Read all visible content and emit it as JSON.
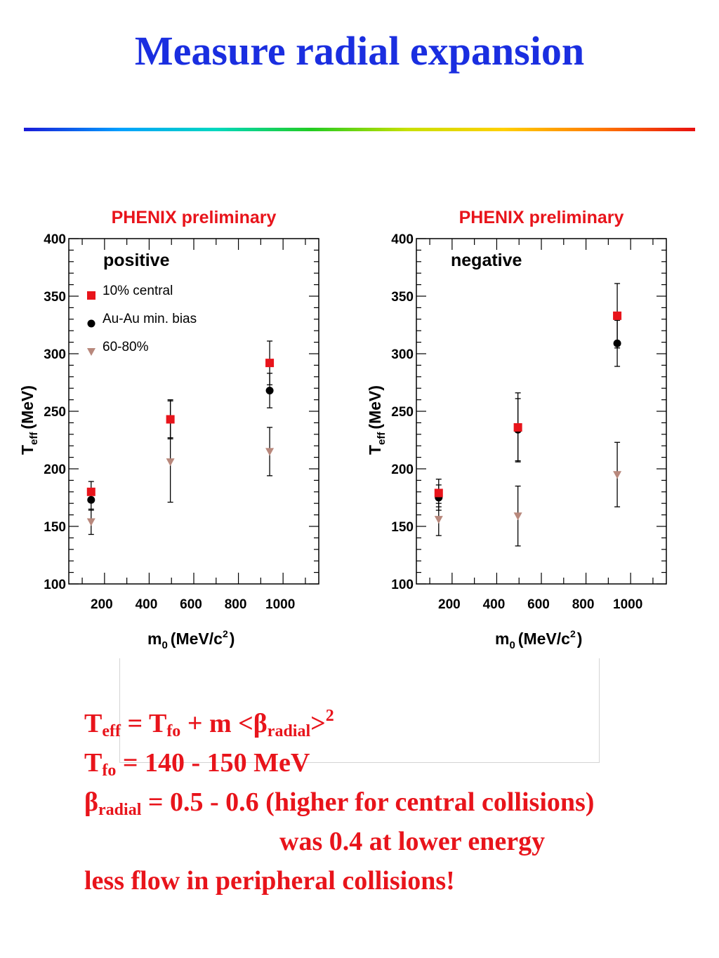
{
  "slide": {
    "title": "Measure radial expansion"
  },
  "chart_data": [
    {
      "type": "scatter",
      "title": "PHENIX preliminary",
      "panel_label": "positive",
      "ylabel_main": "T",
      "ylabel_sub": "eff",
      "ylabel_unit": "(MeV)",
      "xlabel_main": "m",
      "xlabel_sub": "0",
      "xlabel_unit": "(MeV/c",
      "xlabel_sup": "2",
      "xlabel_close": ")",
      "xlim": [
        40,
        1160
      ],
      "ylim": [
        100,
        400
      ],
      "xticks": [
        200,
        400,
        600,
        800,
        1000
      ],
      "yticks": [
        100,
        150,
        200,
        250,
        300,
        350,
        400
      ],
      "grid": false,
      "legend_position": "top-left",
      "series": [
        {
          "name": "10% central",
          "marker": "square",
          "color": "#e8141b",
          "points": [
            {
              "x": 140,
              "y": 180,
              "err": 9
            },
            {
              "x": 495,
              "y": 243,
              "err": 16
            },
            {
              "x": 940,
              "y": 292,
              "err": 19
            }
          ]
        },
        {
          "name": "Au-Au min. bias",
          "marker": "circle",
          "color": "#000000",
          "points": [
            {
              "x": 140,
              "y": 173,
              "err": 9
            },
            {
              "x": 495,
              "y": 243,
              "err": 17
            },
            {
              "x": 940,
              "y": 268,
              "err": 15
            }
          ]
        },
        {
          "name": "60-80%",
          "marker": "triangle",
          "color": "#b8887c",
          "points": [
            {
              "x": 140,
              "y": 154,
              "err": 11
            },
            {
              "x": 495,
              "y": 206,
              "err": 35
            },
            {
              "x": 940,
              "y": 215,
              "err": 21
            }
          ]
        }
      ]
    },
    {
      "type": "scatter",
      "title": "PHENIX preliminary",
      "panel_label": "negative",
      "ylabel_main": "T",
      "ylabel_sub": "eff",
      "ylabel_unit": "(MeV)",
      "xlabel_main": "m",
      "xlabel_sub": "0",
      "xlabel_unit": "(MeV/c",
      "xlabel_sup": "2",
      "xlabel_close": ")",
      "xlim": [
        40,
        1160
      ],
      "ylim": [
        100,
        400
      ],
      "xticks": [
        200,
        400,
        600,
        800,
        1000
      ],
      "yticks": [
        100,
        150,
        200,
        250,
        300,
        350,
        400
      ],
      "grid": false,
      "series": [
        {
          "name": "",
          "marker": "square",
          "color": "#e8141b",
          "points": [
            {
              "x": 140,
              "y": 179,
              "err": 12
            },
            {
              "x": 495,
              "y": 236,
              "err": 30
            },
            {
              "x": 940,
              "y": 333,
              "err": 28
            }
          ]
        },
        {
          "name": "",
          "marker": "circle",
          "color": "#000000",
          "points": [
            {
              "x": 140,
              "y": 175,
              "err": 11
            },
            {
              "x": 495,
              "y": 234,
              "err": 27
            },
            {
              "x": 940,
              "y": 309,
              "err": 20
            }
          ]
        },
        {
          "name": "",
          "marker": "triangle",
          "color": "#b8887c",
          "points": [
            {
              "x": 140,
              "y": 156,
              "err": 14
            },
            {
              "x": 495,
              "y": 159,
              "err": 26
            },
            {
              "x": 940,
              "y": 195,
              "err": 28
            }
          ]
        }
      ]
    }
  ],
  "notes": {
    "l1_T": "T",
    "l1_eff": "eff",
    "l1_eq": " = T",
    "l1_fo": "fo",
    "l1_plus": " + m <β",
    "l1_radial": "radial",
    "l1_gt": ">",
    "l1_sq": "2",
    "l2_T": "T",
    "l2_fo": "fo",
    "l2_rest": " = 140 - 150 MeV",
    "l3_beta": "β",
    "l3_radial": "radial",
    "l3_rest": " = 0.5 - 0.6 (higher for central collisions)",
    "l4": "was 0.4 at lower energy",
    "l5": "less flow in peripheral collisions!"
  }
}
